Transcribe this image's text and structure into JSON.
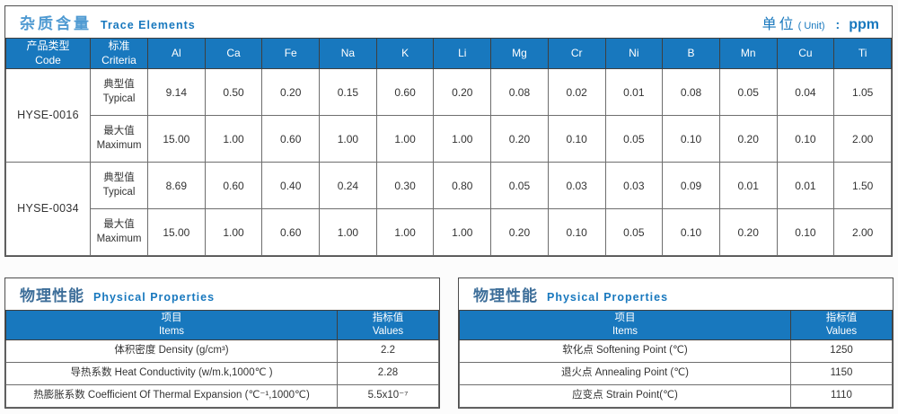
{
  "colors": {
    "accent_blue": "#1878be",
    "title_zh_light_blue": "#4f9ad2",
    "phys_title_zh_blue": "#3d6e99",
    "grid_gray": "#6e6e6e",
    "frame_gray": "#4d4d4d",
    "header_text": "#ffffff",
    "body_text": "#333333"
  },
  "trace": {
    "title_zh": "杂质含量",
    "title_en": "Trace Elements",
    "unit_zh": "单位",
    "unit_en": "( Unit)",
    "unit_colon": ":",
    "unit_value": "ppm",
    "head_code_zh": "产品类型",
    "head_code_en": "Code",
    "head_criteria_zh": "标准",
    "head_criteria_en": "Criteria",
    "elements": [
      "Al",
      "Ca",
      "Fe",
      "Na",
      "K",
      "Li",
      "Mg",
      "Cr",
      "Ni",
      "B",
      "Mn",
      "Cu",
      "Ti"
    ],
    "products": [
      {
        "code": "HYSE-0016",
        "rows": [
          {
            "type_zh": "典型值",
            "type_en": "Typical",
            "values": [
              "9.14",
              "0.50",
              "0.20",
              "0.15",
              "0.60",
              "0.20",
              "0.08",
              "0.02",
              "0.01",
              "0.08",
              "0.05",
              "0.04",
              "1.05"
            ]
          },
          {
            "type_zh": "最大值",
            "type_en": "Maximum",
            "values": [
              "15.00",
              "1.00",
              "0.60",
              "1.00",
              "1.00",
              "1.00",
              "0.20",
              "0.10",
              "0.05",
              "0.10",
              "0.20",
              "0.10",
              "2.00"
            ]
          }
        ]
      },
      {
        "code": "HYSE-0034",
        "rows": [
          {
            "type_zh": "典型值",
            "type_en": "Typical",
            "values": [
              "8.69",
              "0.60",
              "0.40",
              "0.24",
              "0.30",
              "0.80",
              "0.05",
              "0.03",
              "0.03",
              "0.09",
              "0.01",
              "0.01",
              "1.50"
            ]
          },
          {
            "type_zh": "最大值",
            "type_en": "Maximum",
            "values": [
              "15.00",
              "1.00",
              "0.60",
              "1.00",
              "1.00",
              "1.00",
              "0.20",
              "0.10",
              "0.05",
              "0.10",
              "0.20",
              "0.10",
              "2.00"
            ]
          }
        ]
      }
    ]
  },
  "physical_left": {
    "title_zh": "物理性能",
    "title_en": "Physical Properties",
    "head_item_zh": "项目",
    "head_item_en": "Items",
    "head_value_zh": "指标值",
    "head_value_en": "Values",
    "rows": [
      {
        "item": "体积密度 Density (g/cm³)",
        "value": "2.2"
      },
      {
        "item": "导热系数 Heat Conductivity (w/m.k,1000℃ )",
        "value": "2.28"
      },
      {
        "item": "热膨胀系数 Coefficient Of Thermal Expansion (℃⁻¹,1000℃)",
        "value": "5.5x10⁻⁷"
      }
    ]
  },
  "physical_right": {
    "title_zh": "物理性能",
    "title_en": "Physical Properties",
    "head_item_zh": "项目",
    "head_item_en": "Items",
    "head_value_zh": "指标值",
    "head_value_en": "Values",
    "rows": [
      {
        "item": "软化点 Softening Point (℃)",
        "value": "1250"
      },
      {
        "item": "退火点 Annealing Point (℃)",
        "value": "1150"
      },
      {
        "item": "应变点 Strain Point(℃)",
        "value": "1110"
      }
    ]
  }
}
